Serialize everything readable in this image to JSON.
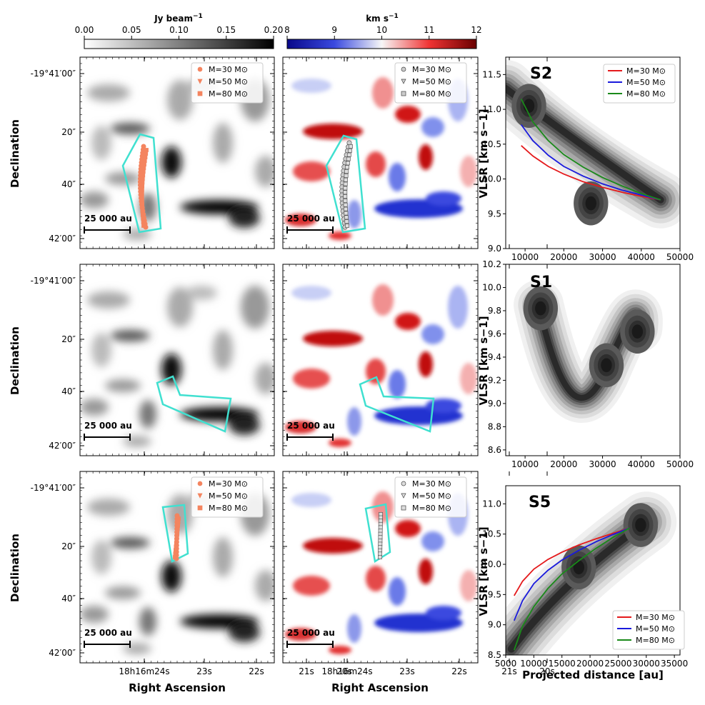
{
  "colorbars": {
    "intensity": {
      "label": "Jy beam",
      "label_exp": "−1",
      "ticks": [
        "0.00",
        "0.05",
        "0.10",
        "0.15",
        "0.20"
      ]
    },
    "velocity": {
      "label": "km s",
      "label_exp": "−1",
      "ticks": [
        "8",
        "9",
        "10",
        "11",
        "12"
      ]
    }
  },
  "axes_text": {
    "declination": "Declination",
    "right_ascension": "Right Ascension",
    "dec_ticks": [
      "-19°41′00″",
      "20″",
      "40″",
      "42′00″"
    ],
    "ra_ticks": [
      "18h16m24s",
      "23s",
      "22s",
      "21s",
      "20s"
    ],
    "scale_bar": "25 000 au",
    "vlsr_label": "VLSR [km s−1]",
    "projected_distance": "Projected distance [au]"
  },
  "map_legends": {
    "top_left": [
      "M=30 M⊙",
      "M=50 M⊙",
      "M=80 M⊙"
    ],
    "top_mid": [
      "M=30 M⊙",
      "M=50 M⊙",
      "M=80 M⊙"
    ],
    "bot_left": [
      "M=30 M⊙",
      "M=50 M⊙",
      "M=80 M⊙"
    ],
    "bot_mid": [
      "M=30 M⊙",
      "M=50 M⊙",
      "M=80 M⊙"
    ]
  },
  "colors": {
    "m30": "#e41a1c",
    "m50": "#1a1adc",
    "m80": "#1a8a1a",
    "poly": "#40e0d0",
    "points": "#f4845f"
  },
  "chart_data": [
    {
      "type": "line",
      "title": "S2",
      "xlabel": "",
      "ylabel": "VLSR [km s−1]",
      "xlim": [
        5000,
        50000
      ],
      "ylim": [
        9.0,
        11.75
      ],
      "xticks": [
        10000,
        20000,
        30000,
        40000,
        50000
      ],
      "yticks": [
        9.0,
        9.5,
        10.0,
        10.5,
        11.0,
        11.5
      ],
      "series": [
        {
          "name": "M=30 M⊙",
          "color": "#e41a1c",
          "x": [
            9000,
            12000,
            16000,
            20000,
            25000,
            30000,
            35000,
            40000,
            45000
          ],
          "y": [
            10.48,
            10.33,
            10.18,
            10.07,
            9.96,
            9.88,
            9.81,
            9.75,
            9.7
          ]
        },
        {
          "name": "M=50 M⊙",
          "color": "#1a1adc",
          "x": [
            9000,
            12000,
            16000,
            20000,
            25000,
            30000,
            35000,
            40000,
            45000
          ],
          "y": [
            10.78,
            10.55,
            10.34,
            10.18,
            10.04,
            9.93,
            9.84,
            9.77,
            9.7
          ]
        },
        {
          "name": "M=80 M⊙",
          "color": "#1a8a1a",
          "x": [
            9000,
            12000,
            16000,
            20000,
            25000,
            30000,
            35000,
            40000,
            45000
          ],
          "y": [
            11.15,
            10.82,
            10.55,
            10.35,
            10.17,
            10.02,
            9.9,
            9.79,
            9.7
          ]
        }
      ],
      "density_peaks": [
        {
          "x": 11000,
          "y": 11.05
        },
        {
          "x": 27000,
          "y": 9.65
        }
      ],
      "legend": "top-right"
    },
    {
      "type": "density",
      "title": "S1",
      "xlabel": "",
      "ylabel": "VLSR [km s−1]",
      "xlim": [
        5000,
        50000
      ],
      "ylim": [
        8.55,
        10.2
      ],
      "xticks": [
        10000,
        20000,
        30000,
        40000,
        50000
      ],
      "yticks": [
        8.6,
        8.8,
        9.0,
        9.2,
        9.4,
        9.6,
        9.8,
        10.0,
        10.2
      ],
      "density_peaks": [
        {
          "x": 14000,
          "y": 9.82
        },
        {
          "x": 31000,
          "y": 9.33
        },
        {
          "x": 39000,
          "y": 9.62
        }
      ]
    },
    {
      "type": "line",
      "title": "S5",
      "xlabel": "Projected distance [au]",
      "ylabel": "VLSR [km s−1]",
      "xlim": [
        5000,
        36000
      ],
      "ylim": [
        8.5,
        11.3
      ],
      "xticks": [
        5000,
        10000,
        15000,
        20000,
        25000,
        30000,
        35000
      ],
      "yticks": [
        8.5,
        9.0,
        9.5,
        10.0,
        10.5,
        11.0
      ],
      "series": [
        {
          "name": "M=30 M⊙",
          "color": "#e41a1c",
          "x": [
            6500,
            8000,
            10000,
            12500,
            15000,
            18000,
            21000,
            24000,
            27000
          ],
          "y": [
            9.48,
            9.72,
            9.92,
            10.08,
            10.2,
            10.32,
            10.42,
            10.51,
            10.6
          ]
        },
        {
          "name": "M=50 M⊙",
          "color": "#1a1adc",
          "x": [
            6500,
            8000,
            10000,
            12500,
            15000,
            18000,
            21000,
            24000,
            27000
          ],
          "y": [
            9.07,
            9.4,
            9.68,
            9.9,
            10.07,
            10.23,
            10.37,
            10.49,
            10.6
          ]
        },
        {
          "name": "M=80 M⊙",
          "color": "#1a8a1a",
          "x": [
            6500,
            8000,
            10000,
            12500,
            15000,
            18000,
            21000,
            24000,
            27000
          ],
          "y": [
            8.58,
            8.98,
            9.3,
            9.6,
            9.84,
            10.06,
            10.26,
            10.44,
            10.6
          ]
        }
      ],
      "density_peaks": [
        {
          "x": 29000,
          "y": 10.65
        },
        {
          "x": 18000,
          "y": 9.95
        }
      ],
      "legend": "bottom-right"
    }
  ]
}
